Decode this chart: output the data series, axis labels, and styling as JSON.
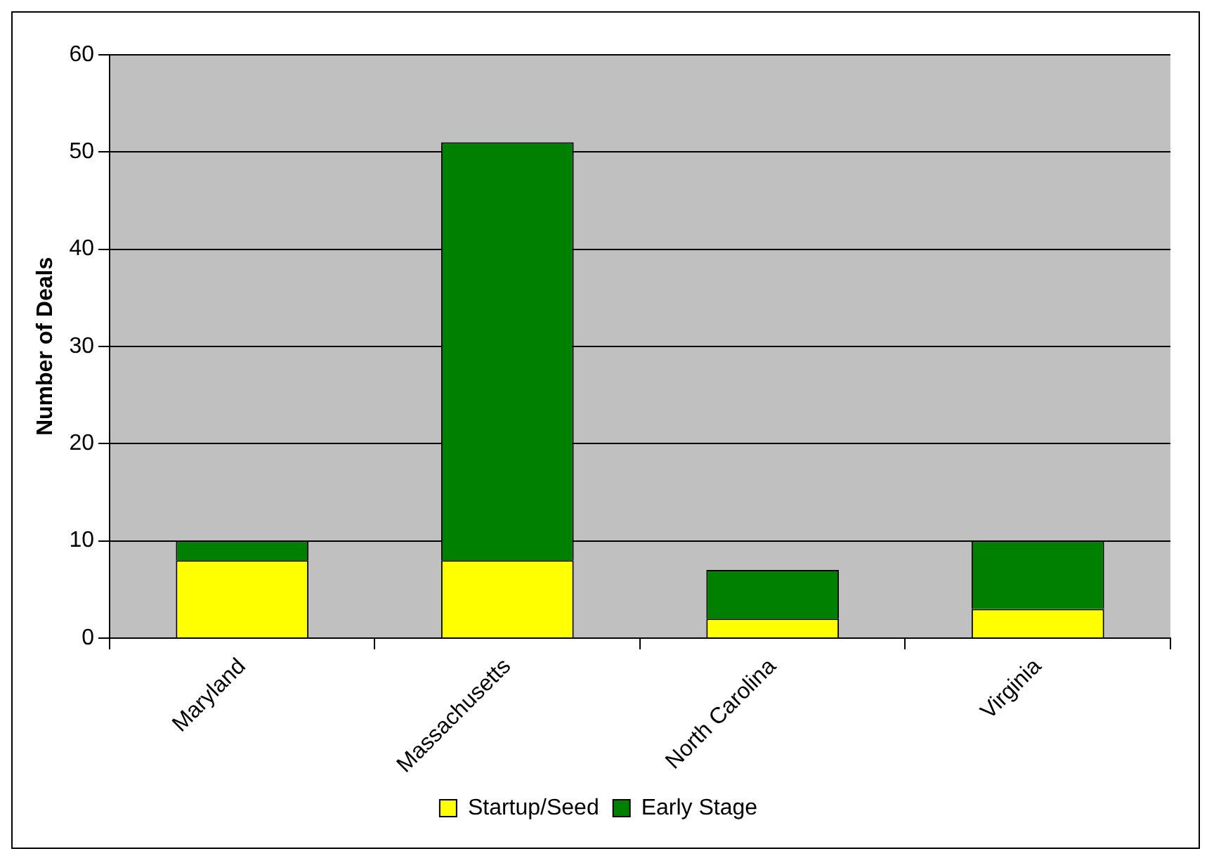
{
  "chart_data": {
    "type": "bar",
    "stacked": true,
    "ylabel": "Number of Deals",
    "categories": [
      "Maryland",
      "Massachusetts",
      "North Carolina",
      "Virginia"
    ],
    "series": [
      {
        "name": "Startup/Seed",
        "color": "#ffff00",
        "values": [
          8,
          8,
          2,
          3
        ]
      },
      {
        "name": "Early Stage",
        "color": "#008000",
        "values": [
          2,
          43,
          5,
          7
        ]
      }
    ],
    "ylim": [
      0,
      60
    ],
    "yticks": [
      0,
      10,
      20,
      30,
      40,
      50,
      60
    ],
    "grid": "y",
    "legend": "bottom"
  }
}
